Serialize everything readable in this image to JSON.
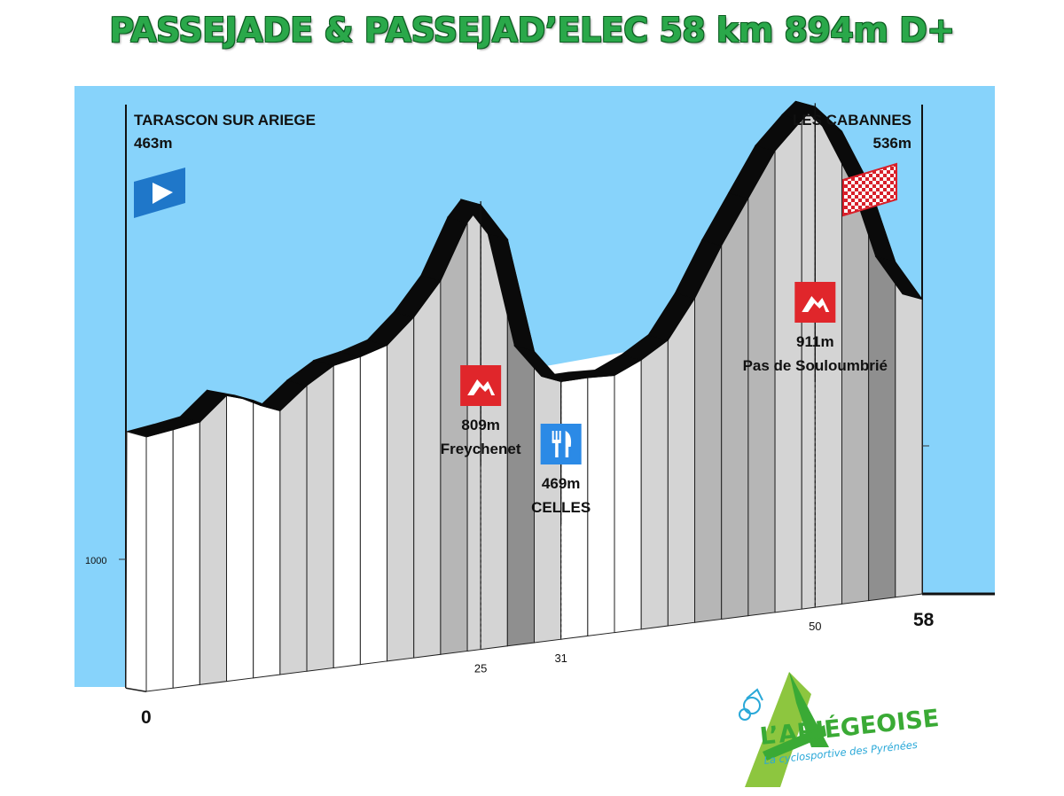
{
  "title": "PASSEJADE  & PASSEJAD’ELEC 58 km 894m D+",
  "colors": {
    "sky": "#87d3fb",
    "title_green": "#2aa84a",
    "start_blue": "#1f77c9",
    "finish_red": "#d8202a",
    "climb_red": "#e0262b",
    "food_blue": "#2b8ae6"
  },
  "chart_data": {
    "type": "area",
    "subtype": "elevation-profile",
    "x_unit": "km",
    "y_unit": "m",
    "distance_total": 58,
    "profile": [
      {
        "km": 0,
        "alt": 463
      },
      {
        "km": 2,
        "alt": 470
      },
      {
        "km": 4,
        "alt": 478
      },
      {
        "km": 6,
        "alt": 520
      },
      {
        "km": 8,
        "alt": 505
      },
      {
        "km": 10,
        "alt": 480
      },
      {
        "km": 12,
        "alt": 520
      },
      {
        "km": 14,
        "alt": 550
      },
      {
        "km": 16,
        "alt": 560
      },
      {
        "km": 18,
        "alt": 575
      },
      {
        "km": 20,
        "alt": 620
      },
      {
        "km": 22,
        "alt": 680
      },
      {
        "km": 24,
        "alt": 780
      },
      {
        "km": 25,
        "alt": 809
      },
      {
        "km": 27,
        "alt": 740
      },
      {
        "km": 29,
        "alt": 530
      },
      {
        "km": 31,
        "alt": 469
      },
      {
        "km": 33,
        "alt": 470
      },
      {
        "km": 35,
        "alt": 468
      },
      {
        "km": 37,
        "alt": 490
      },
      {
        "km": 39,
        "alt": 520
      },
      {
        "km": 41,
        "alt": 590
      },
      {
        "km": 43,
        "alt": 680
      },
      {
        "km": 45,
        "alt": 760
      },
      {
        "km": 47,
        "alt": 840
      },
      {
        "km": 49,
        "alt": 890
      },
      {
        "km": 50,
        "alt": 911
      },
      {
        "km": 52,
        "alt": 860
      },
      {
        "km": 54,
        "alt": 760
      },
      {
        "km": 56,
        "alt": 610
      },
      {
        "km": 58,
        "alt": 536
      }
    ],
    "reference_line": {
      "alt": 1000,
      "label": "1000"
    },
    "distance_labels": [
      {
        "km": 0,
        "text": "0"
      },
      {
        "km": 25,
        "text": "25"
      },
      {
        "km": 31,
        "text": "31"
      },
      {
        "km": 50,
        "text": "50"
      },
      {
        "km": 58,
        "text": "58"
      }
    ],
    "points": [
      {
        "type": "start",
        "name": "TARASCON SUR ARIEGE",
        "alt_label": "463m",
        "icon": "play-icon"
      },
      {
        "type": "finish",
        "name": "LES CABANNES",
        "alt_label": "536m",
        "icon": "checkered-flag-icon"
      },
      {
        "type": "climb",
        "km": 25,
        "name": "Freychenet",
        "alt_label": "809m",
        "icon": "mountain-icon"
      },
      {
        "type": "food",
        "km": 31,
        "name": "CELLES",
        "alt_label": "469m",
        "icon": "fork-knife-icon"
      },
      {
        "type": "climb",
        "km": 50,
        "name": "Pas de Souloumbrié",
        "alt_label": "911m",
        "icon": "mountain-icon"
      }
    ]
  },
  "logo": {
    "name": "L’ARIÉGEOISE",
    "tagline": "La cyclosportive des Pyrénées",
    "icon": "cyclist-mountain-logo-icon"
  }
}
